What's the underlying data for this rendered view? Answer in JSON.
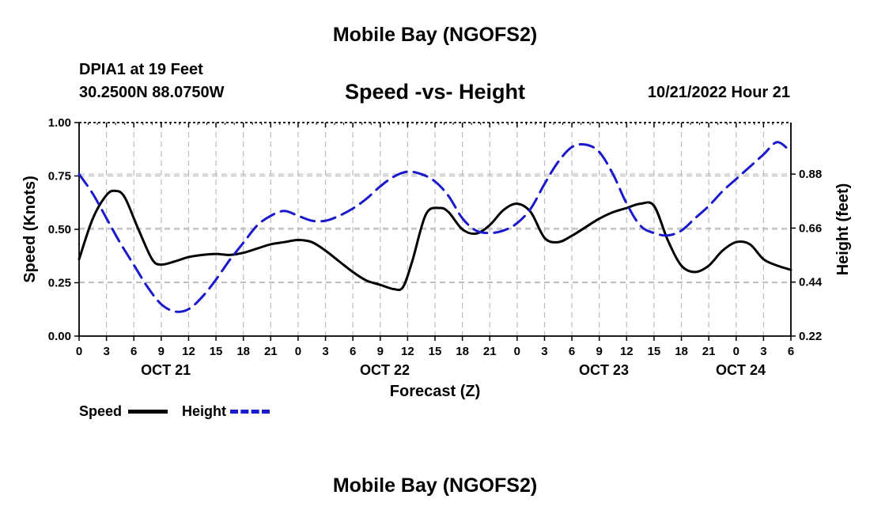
{
  "page": {
    "title": "Mobile Bay (NGOFS2)",
    "title_repeat": "Mobile Bay (NGOFS2)",
    "station": "DPIA1 at 19 Feet",
    "coords": "30.2500N  88.0750W",
    "subtitle": "Speed -vs- Height",
    "datetime": "10/21/2022 Hour 21"
  },
  "legend": {
    "speed_label": "Speed",
    "height_label": "Height"
  },
  "colors": {
    "speed": "#000000",
    "height": "#1a1acc",
    "grid": "#bbbbbb"
  },
  "chart_data": {
    "type": "line",
    "xlabel": "Forecast (Z)",
    "ylabel_left": "Speed (Knots)",
    "ylabel_right": "Height (feet)",
    "x_unit": "hours since 10/21/2022 00Z",
    "xlim": [
      0,
      78
    ],
    "ylim_left": [
      0,
      1
    ],
    "ylim_right": [
      0.22,
      1.09
    ],
    "left_ticks": [
      "0.00",
      "0.25",
      "0.50",
      "0.75",
      "1.00"
    ],
    "right_ticks": [
      "0.22",
      "0.44",
      "0.66",
      "0.88"
    ],
    "right_tick_values": [
      0.22,
      0.44,
      0.66,
      0.88
    ],
    "x_tick_labels": [
      "0",
      "3",
      "6",
      "9",
      "12",
      "15",
      "18",
      "21",
      "0",
      "3",
      "6",
      "9",
      "12",
      "15",
      "18",
      "21",
      "0",
      "3",
      "6",
      "9",
      "12",
      "15",
      "18",
      "21",
      "0",
      "3",
      "6"
    ],
    "date_labels": [
      {
        "x": 9.5,
        "label": "OCT 21"
      },
      {
        "x": 33.5,
        "label": "OCT 22"
      },
      {
        "x": 57.5,
        "label": "OCT 23"
      },
      {
        "x": 72.5,
        "label": "OCT 24"
      }
    ],
    "grid": true,
    "series": [
      {
        "name": "Speed",
        "axis": "left",
        "x": [
          0,
          1.5,
          3,
          4,
          5,
          6.5,
          8,
          9,
          10.5,
          12,
          13.5,
          15,
          16.5,
          18,
          19.5,
          21,
          22.5,
          24,
          25.5,
          27,
          28.5,
          30,
          31.5,
          33,
          34.5,
          35.5,
          36.5,
          38,
          39.5,
          40.5,
          42,
          43.5,
          45,
          46.5,
          48,
          49.5,
          51,
          52.5,
          54,
          55.5,
          57,
          58.5,
          60,
          61.5,
          63,
          64.5,
          66,
          67.5,
          69,
          70.5,
          72,
          73.5,
          75,
          76.5,
          78
        ],
        "y": [
          0.36,
          0.55,
          0.66,
          0.68,
          0.65,
          0.5,
          0.36,
          0.335,
          0.35,
          0.37,
          0.38,
          0.385,
          0.38,
          0.39,
          0.41,
          0.43,
          0.44,
          0.45,
          0.44,
          0.4,
          0.35,
          0.3,
          0.26,
          0.24,
          0.22,
          0.23,
          0.35,
          0.57,
          0.6,
          0.58,
          0.5,
          0.48,
          0.52,
          0.59,
          0.62,
          0.58,
          0.46,
          0.44,
          0.47,
          0.51,
          0.55,
          0.58,
          0.6,
          0.62,
          0.61,
          0.45,
          0.33,
          0.3,
          0.33,
          0.4,
          0.44,
          0.43,
          0.36,
          0.33,
          0.31
        ]
      },
      {
        "name": "Height",
        "axis": "right",
        "x": [
          0,
          1.5,
          3,
          4.5,
          6,
          7.5,
          9,
          10.5,
          12,
          13.5,
          15,
          16.5,
          18,
          19.5,
          21,
          22.5,
          24,
          25.5,
          27,
          28.5,
          30,
          31.5,
          33,
          34.5,
          36,
          37.5,
          39,
          40.5,
          42,
          43.5,
          45,
          46.5,
          48,
          49.5,
          51,
          52.5,
          54,
          55.5,
          57,
          58.5,
          60,
          61.5,
          63,
          64.5,
          66,
          67.5,
          69,
          70.5,
          72,
          73.5,
          75,
          76.5,
          78
        ],
        "y": [
          0.88,
          0.8,
          0.7,
          0.6,
          0.51,
          0.42,
          0.35,
          0.32,
          0.33,
          0.38,
          0.45,
          0.53,
          0.6,
          0.67,
          0.71,
          0.73,
          0.71,
          0.69,
          0.69,
          0.71,
          0.74,
          0.78,
          0.83,
          0.87,
          0.89,
          0.88,
          0.85,
          0.79,
          0.7,
          0.65,
          0.64,
          0.65,
          0.68,
          0.74,
          0.84,
          0.93,
          0.99,
          1.0,
          0.97,
          0.88,
          0.76,
          0.67,
          0.64,
          0.63,
          0.65,
          0.7,
          0.75,
          0.81,
          0.86,
          0.91,
          0.96,
          1.01,
          0.97
        ]
      }
    ]
  }
}
